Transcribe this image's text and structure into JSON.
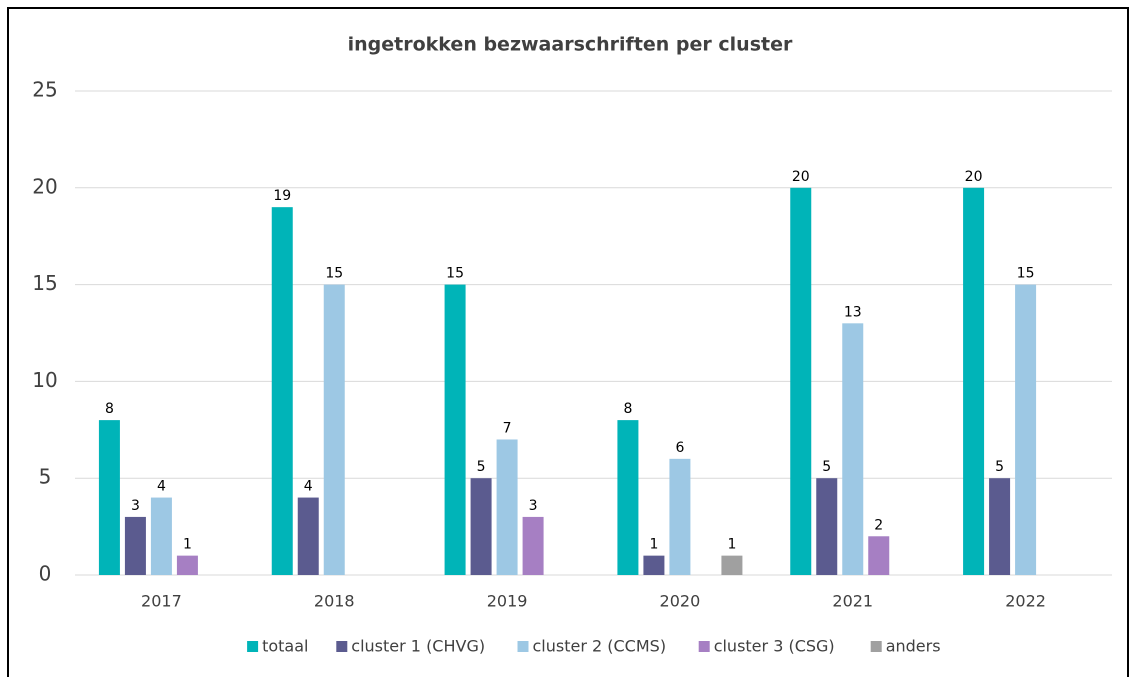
{
  "chart_data": {
    "type": "bar",
    "title": "ingetrokken bezwaarschriften per cluster",
    "categories": [
      "2017",
      "2018",
      "2019",
      "2020",
      "2021",
      "2022"
    ],
    "series": [
      {
        "name": "totaal",
        "color": "#00b4b8",
        "values": [
          8,
          19,
          15,
          8,
          20,
          20
        ]
      },
      {
        "name": "cluster 1 (CHVG)",
        "color": "#5b5b8f",
        "values": [
          3,
          4,
          5,
          1,
          5,
          5
        ]
      },
      {
        "name": "cluster 2 (CCMS)",
        "color": "#9dc8e4",
        "values": [
          4,
          15,
          7,
          6,
          13,
          15
        ]
      },
      {
        "name": "cluster 3 (CSG)",
        "color": "#a67fc3",
        "values": [
          1,
          null,
          3,
          null,
          2,
          null
        ]
      },
      {
        "name": "anders",
        "color": "#a0a0a0",
        "values": [
          null,
          null,
          null,
          1,
          null,
          null
        ]
      }
    ],
    "ylim": [
      0,
      25
    ],
    "yticks": [
      0,
      5,
      10,
      15,
      20,
      25
    ],
    "grid": true,
    "legend": "bottom",
    "data_labels": true
  }
}
